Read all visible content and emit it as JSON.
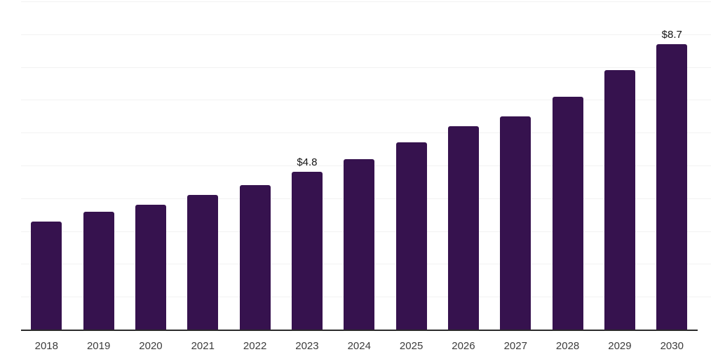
{
  "chart_data": {
    "type": "bar",
    "title": "",
    "xlabel": "",
    "ylabel": "",
    "categories": [
      "2018",
      "2019",
      "2020",
      "2021",
      "2022",
      "2023",
      "2024",
      "2025",
      "2026",
      "2027",
      "2028",
      "2029",
      "2030"
    ],
    "values": [
      3.3,
      3.6,
      3.8,
      4.1,
      4.4,
      4.8,
      5.2,
      5.7,
      6.2,
      6.5,
      7.1,
      7.9,
      8.7
    ],
    "value_labels": [
      null,
      null,
      null,
      null,
      null,
      "$4.8",
      null,
      null,
      null,
      null,
      null,
      null,
      "$8.7"
    ],
    "ylim": [
      0,
      10
    ],
    "y_gridline_interval": 1,
    "grid": "horizontal",
    "legend": "none",
    "colors": {
      "bar": "#36124E",
      "gridline": "#F2F2F2",
      "axis_line": "#2B2B2B",
      "tick_label": "#3C3C3C",
      "value_label": "#141414",
      "background": "#FFFFFF"
    }
  }
}
